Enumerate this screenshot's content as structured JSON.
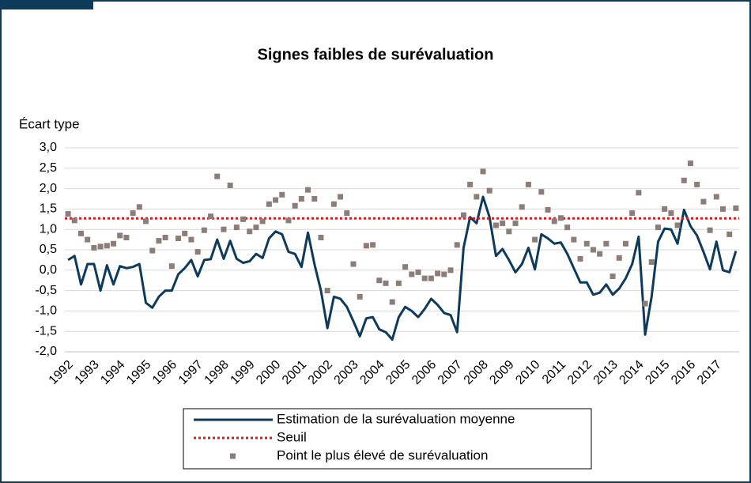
{
  "chart_data": {
    "type": "line",
    "title": "Signes faibles de surévaluation",
    "y_label": "Écart type",
    "ylim": [
      -2,
      3
    ],
    "yticks": [
      {
        "value": 3,
        "label": "3,0"
      },
      {
        "value": 2.5,
        "label": "2,5"
      },
      {
        "value": 2,
        "label": "2,0"
      },
      {
        "value": 1.5,
        "label": "1,5"
      },
      {
        "value": 1,
        "label": "1,0"
      },
      {
        "value": 0.5,
        "label": "0,5"
      },
      {
        "value": 0,
        "label": "0,0"
      },
      {
        "value": -0.5,
        "label": "-0,5"
      },
      {
        "value": -1,
        "label": "-1,0"
      },
      {
        "value": -1.5,
        "label": "-1,5"
      },
      {
        "value": -2,
        "label": "-2,0"
      }
    ],
    "grid": true,
    "categories": [
      "1992",
      null,
      null,
      null,
      "1993",
      null,
      null,
      null,
      "1994",
      null,
      null,
      null,
      "1995",
      null,
      null,
      null,
      "1996",
      null,
      null,
      null,
      "1997",
      null,
      null,
      null,
      "1998",
      null,
      null,
      null,
      "1999",
      null,
      null,
      null,
      "2000",
      null,
      null,
      null,
      "2001",
      null,
      null,
      null,
      "2002",
      null,
      null,
      null,
      "2003",
      null,
      null,
      null,
      "2004",
      null,
      null,
      null,
      "2005",
      null,
      null,
      null,
      "2006",
      null,
      null,
      null,
      "2007",
      null,
      null,
      null,
      "2008",
      null,
      null,
      null,
      "2009",
      null,
      null,
      null,
      "2010",
      null,
      null,
      null,
      "2011",
      null,
      null,
      null,
      "2012",
      null,
      null,
      null,
      "2013",
      null,
      null,
      null,
      "2014",
      null,
      null,
      null,
      "2015",
      null,
      null,
      null,
      "2016",
      null,
      null,
      null,
      "2017",
      null,
      null,
      null
    ],
    "series": [
      {
        "name": "Estimation de la surévaluation moyenne",
        "type": "line",
        "color": "#0e3a5c",
        "values": [
          0.25,
          0.35,
          -0.35,
          0.15,
          0.15,
          -0.5,
          0.12,
          -0.35,
          0.1,
          0.05,
          0.08,
          0.15,
          -0.8,
          -0.92,
          -0.65,
          -0.5,
          -0.5,
          -0.1,
          0.05,
          0.25,
          -0.15,
          0.25,
          0.27,
          0.75,
          0.28,
          0.72,
          0.28,
          0.18,
          0.22,
          0.4,
          0.3,
          0.78,
          0.95,
          0.88,
          0.45,
          0.4,
          0.08,
          0.92,
          0.15,
          -0.5,
          -1.42,
          -0.65,
          -0.7,
          -0.9,
          -1.25,
          -1.62,
          -1.18,
          -1.15,
          -1.45,
          -1.52,
          -1.7,
          -1.15,
          -0.9,
          -1.0,
          -1.15,
          -0.95,
          -0.7,
          -0.85,
          -1.05,
          -1.1,
          -1.52,
          0.55,
          1.3,
          1.15,
          1.8,
          1.3,
          0.35,
          0.52,
          0.25,
          -0.05,
          0.15,
          0.55,
          0.02,
          0.88,
          0.78,
          0.65,
          0.68,
          0.4,
          0.05,
          -0.3,
          -0.3,
          -0.6,
          -0.55,
          -0.35,
          -0.6,
          -0.45,
          -0.2,
          0.15,
          0.82,
          -1.58,
          -0.65,
          0.7,
          1.02,
          1.0,
          0.65,
          1.48,
          1.08,
          0.85,
          0.45,
          0.02,
          0.7,
          0.0,
          -0.05,
          0.47
        ]
      },
      {
        "name": "Seuil",
        "type": "hline",
        "color": "#e8141c",
        "value": 1.27
      },
      {
        "name": "Point le plus élevé de surévaluation",
        "type": "scatter",
        "color": "#8c7d78",
        "values": [
          1.38,
          1.22,
          0.9,
          0.75,
          0.55,
          0.58,
          0.6,
          0.65,
          0.85,
          0.8,
          1.4,
          1.55,
          1.2,
          0.48,
          0.72,
          0.8,
          0.1,
          0.78,
          0.9,
          0.75,
          0.45,
          0.98,
          1.32,
          2.3,
          1.0,
          2.08,
          1.05,
          1.25,
          0.95,
          1.05,
          1.2,
          1.62,
          1.72,
          1.85,
          1.22,
          1.58,
          1.75,
          1.97,
          1.75,
          0.8,
          -0.5,
          1.62,
          1.8,
          1.4,
          0.15,
          -0.65,
          0.6,
          0.62,
          -0.25,
          -0.32,
          -0.78,
          -0.32,
          0.08,
          -0.1,
          -0.05,
          -0.2,
          -0.2,
          -0.08,
          -0.1,
          0.0,
          0.62,
          1.35,
          2.1,
          1.8,
          2.42,
          1.95,
          1.1,
          1.15,
          0.95,
          1.15,
          1.55,
          2.1,
          0.75,
          1.92,
          1.48,
          1.2,
          1.28,
          1.05,
          0.75,
          0.28,
          0.65,
          0.5,
          0.4,
          0.65,
          -0.15,
          0.3,
          0.65,
          1.4,
          1.9,
          -0.82,
          0.2,
          1.05,
          1.5,
          1.4,
          1.1,
          2.2,
          2.62,
          2.1,
          1.68,
          0.98,
          1.8,
          1.5,
          0.88,
          1.52
        ]
      }
    ]
  }
}
